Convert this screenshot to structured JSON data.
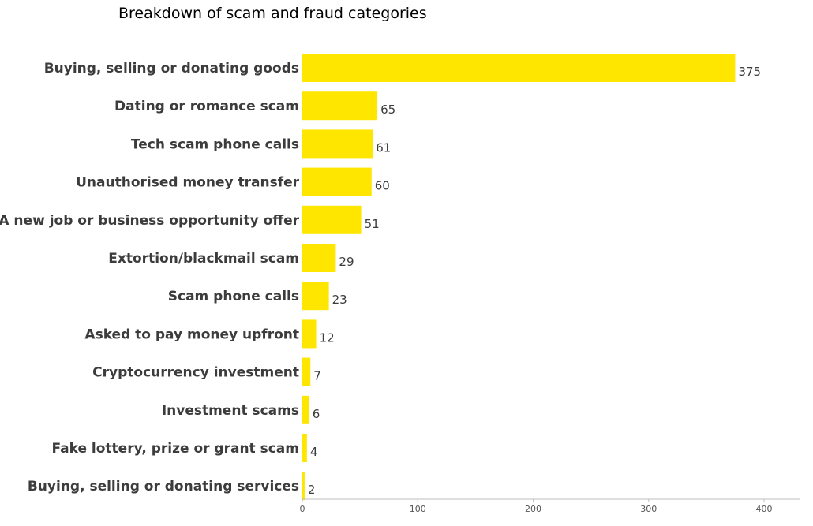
{
  "chart_data": {
    "type": "bar",
    "orientation": "horizontal",
    "title": "Breakdown of scam and fraud categories",
    "categories": [
      "Buying, selling or donating goods",
      "Dating or romance scam",
      "Tech scam phone calls",
      "Unauthorised money transfer",
      "A new job or business opportunity offer",
      "Extortion/blackmail scam",
      "Scam phone calls",
      "Asked to pay money upfront",
      "Cryptocurrency investment",
      "Investment scams",
      "Fake lottery, prize or grant scam",
      "Buying, selling or donating services"
    ],
    "values": [
      375,
      65,
      61,
      60,
      51,
      29,
      23,
      12,
      7,
      6,
      4,
      2
    ],
    "value_labels": [
      "375",
      "65",
      "61",
      "60",
      "51",
      "29",
      "23",
      "12",
      "7",
      "6",
      "4",
      "2"
    ],
    "xlim": [
      0,
      420
    ],
    "xticks": [
      0,
      100,
      200,
      300,
      400
    ],
    "xtick_labels": [
      "0",
      "100",
      "200",
      "300",
      "400"
    ],
    "bar_color": "#FFE600",
    "grid": false,
    "legend": "none"
  }
}
